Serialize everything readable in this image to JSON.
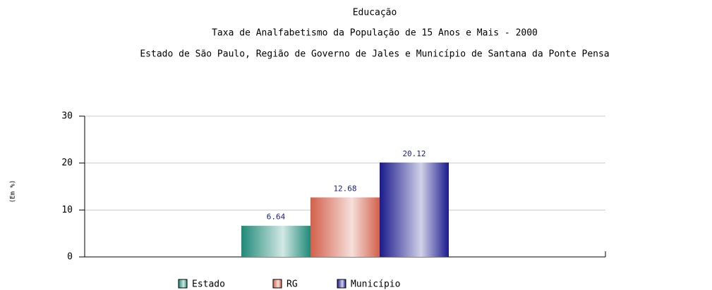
{
  "chart_data": {
    "type": "bar",
    "title": "Educação",
    "subtitle": "Taxa de Analfabetismo da População de 15 Anos e Mais - 2000",
    "subtitle2": "Estado de São Paulo, Região de Governo de Jales e Município de Santana da Ponte Pensa",
    "y_label": "(Em %)",
    "categories": [
      null
    ],
    "series": [
      {
        "name": "Estado",
        "color": "#1f8a78",
        "values": [
          6.64
        ]
      },
      {
        "name": "RG",
        "color": "#d2604a",
        "values": [
          12.68
        ]
      },
      {
        "name": "Município",
        "color": "#1a1a8c",
        "values": [
          20.12
        ]
      }
    ],
    "ylim": [
      0,
      30
    ],
    "yticks": [
      0,
      10,
      20,
      30
    ],
    "grid": true
  }
}
